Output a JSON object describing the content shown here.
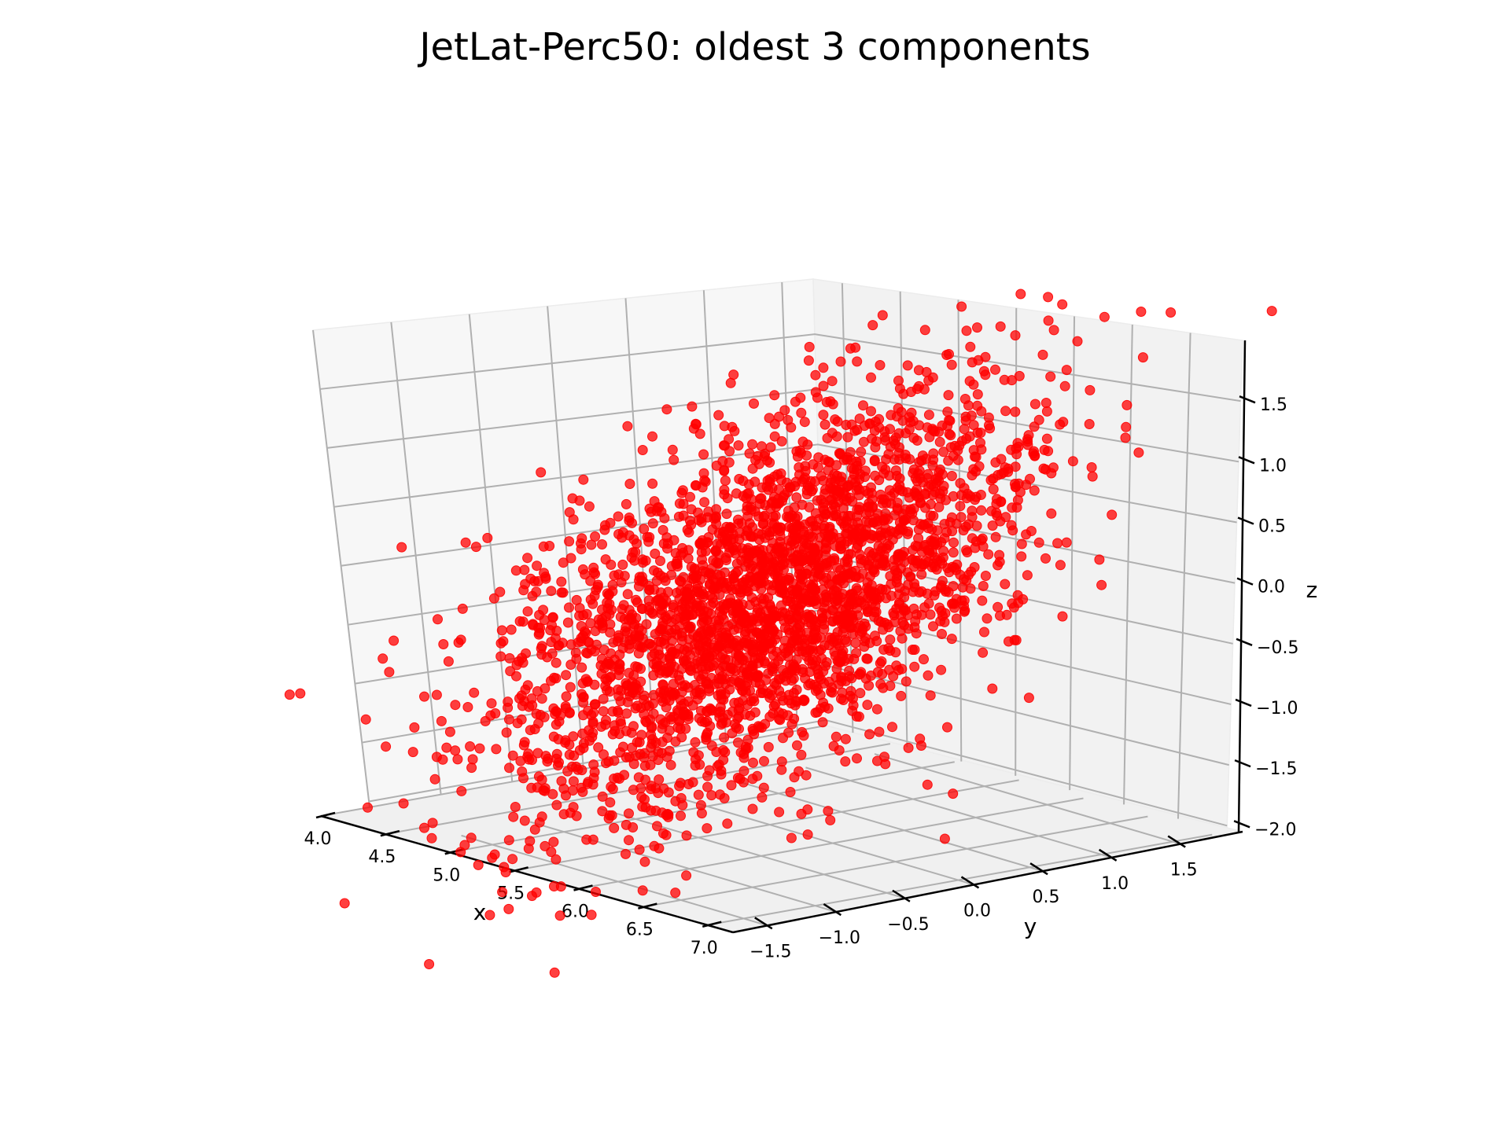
{
  "chart_data": {
    "type": "scatter",
    "projection": "3d",
    "title": "JetLat-Perc50: oldest 3 components",
    "xlabel": "x",
    "ylabel": "y",
    "zlabel": "z",
    "xlim": [
      4.0,
      7.2
    ],
    "ylim": [
      -1.75,
      1.95
    ],
    "zlim": [
      -2.05,
      2.0
    ],
    "xticks": [
      "4.0",
      "4.5",
      "5.0",
      "5.5",
      "6.0",
      "6.5",
      "7.0"
    ],
    "yticks": [
      "−1.5",
      "−1.0",
      "−0.5",
      "0.0",
      "0.5",
      "1.0",
      "1.5"
    ],
    "zticks": [
      "−2.0",
      "−1.5",
      "−1.0",
      "−0.5",
      "0.0",
      "0.5",
      "1.0",
      "1.5"
    ],
    "grid": true,
    "marker_color": "#ff0000",
    "point_cloud": {
      "count": 3000,
      "distribution": "correlated gaussian",
      "mean": [
        5.6,
        0.0,
        -0.2
      ],
      "std": [
        0.5,
        0.6,
        0.8
      ]
    }
  }
}
